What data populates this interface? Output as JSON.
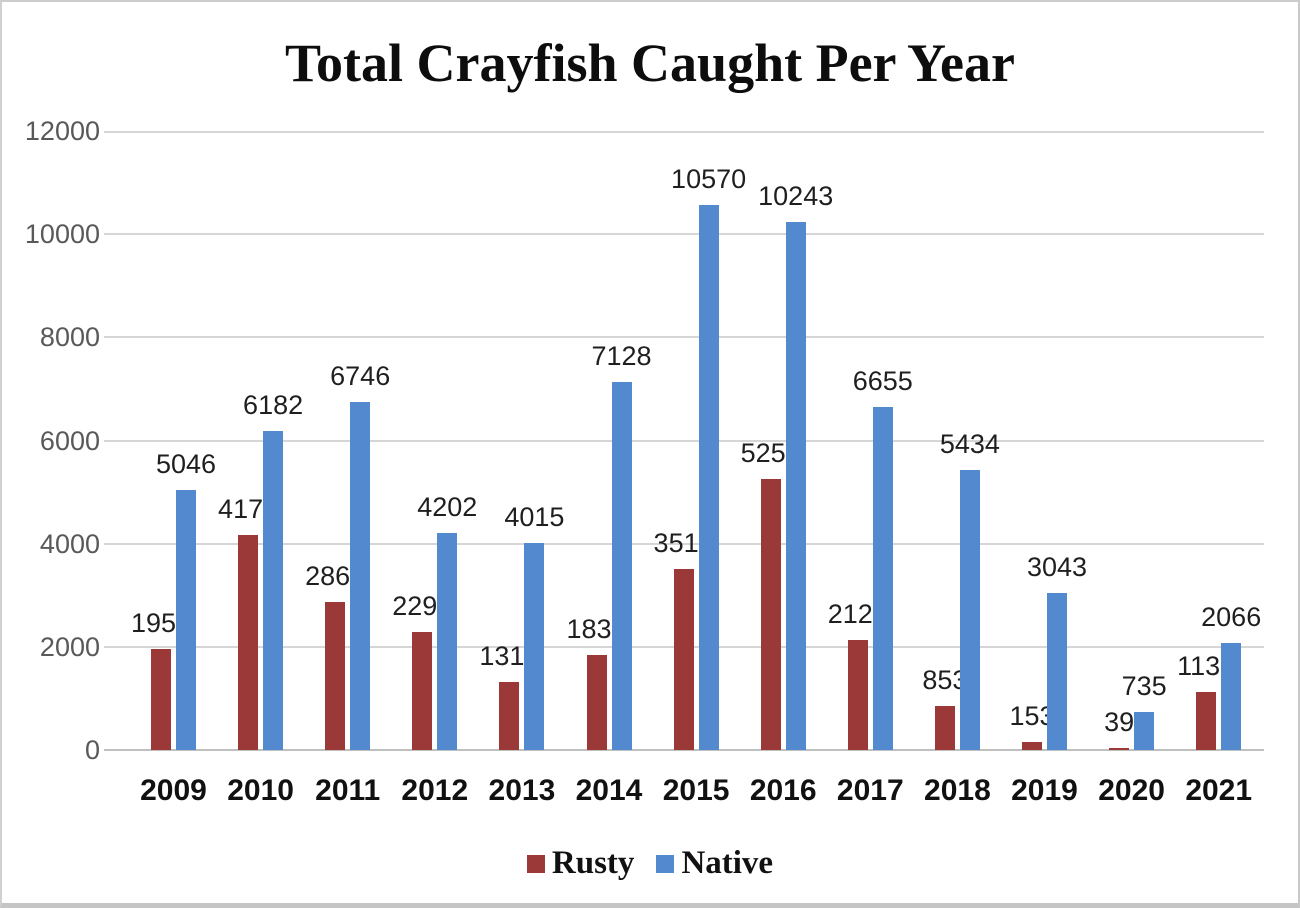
{
  "chart_data": {
    "type": "bar",
    "title": "Total Crayfish Caught Per Year",
    "categories": [
      "2009",
      "2010",
      "2011",
      "2012",
      "2013",
      "2014",
      "2015",
      "2016",
      "2017",
      "2018",
      "2019",
      "2020",
      "2021"
    ],
    "series": [
      {
        "name": "Rusty",
        "color": "#9a3937",
        "values": [
          1952,
          4171,
          2864,
          2290,
          1314,
          1838,
          3515,
          5258,
          2125,
          853,
          153,
          39,
          1133
        ]
      },
      {
        "name": "Native",
        "color": "#5289cf",
        "values": [
          5046,
          6182,
          6746,
          4202,
          4015,
          7128,
          10570,
          10243,
          6655,
          5434,
          3043,
          735,
          2066
        ]
      }
    ],
    "xlabel": "",
    "ylabel": "",
    "ylim": [
      0,
      12000
    ],
    "ytick_step": 2000,
    "ytick_labels": [
      "0",
      "2000",
      "4000",
      "6000",
      "8000",
      "10000",
      "12000"
    ],
    "grid": true,
    "data_labels": true,
    "legend_position": "bottom",
    "colors": {
      "gridline": "#d6d6d6",
      "axis_line": "#c0c0c0",
      "tick_label": "#595959",
      "data_label": "#1f1f1f",
      "x_label": "#111111",
      "title": "#0d0d0d",
      "background": "#ffffff",
      "frame_border": "#c8c8c8"
    }
  }
}
